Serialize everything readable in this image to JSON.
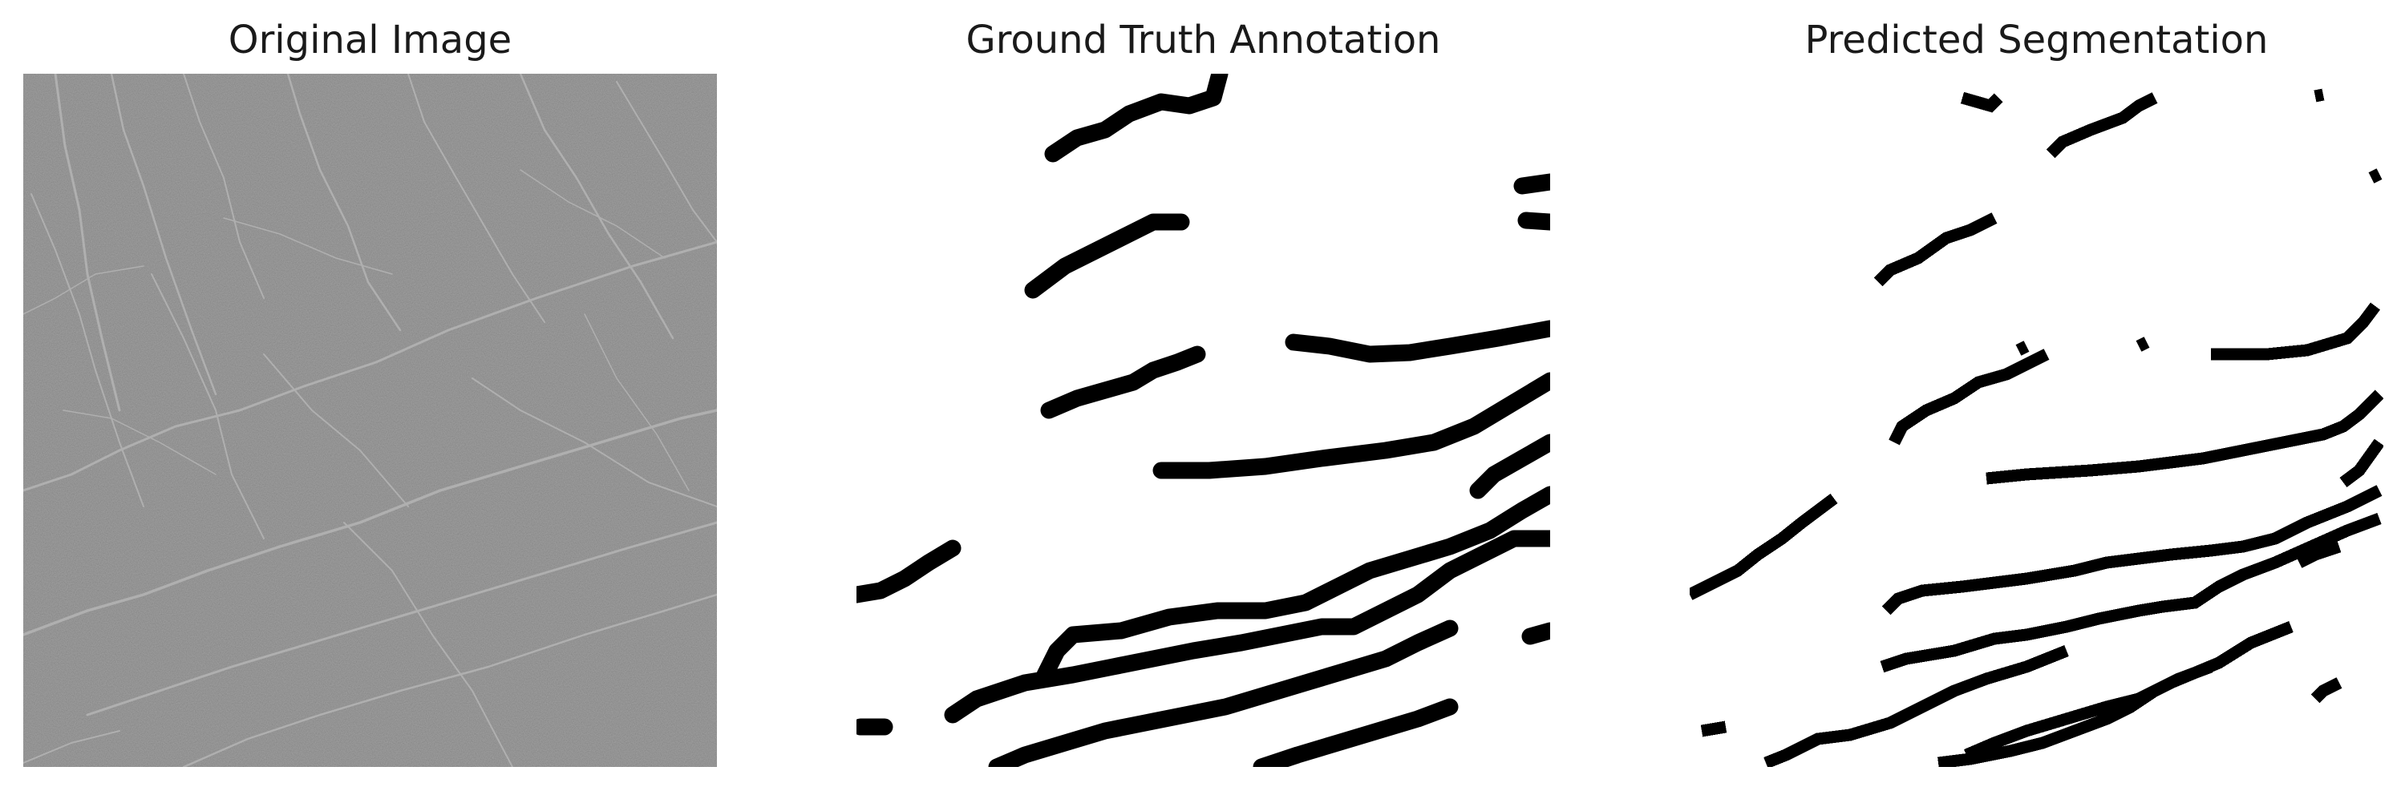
{
  "figure": {
    "panels": [
      {
        "title": "Original Image"
      },
      {
        "title": "Ground Truth Annotation"
      },
      {
        "title": "Predicted Segmentation"
      }
    ]
  },
  "colors": {
    "original_background": "#737373",
    "crack_highlight": "#b9b9b9",
    "mask_foreground": "#000000",
    "mask_background": "#ffffff"
  }
}
